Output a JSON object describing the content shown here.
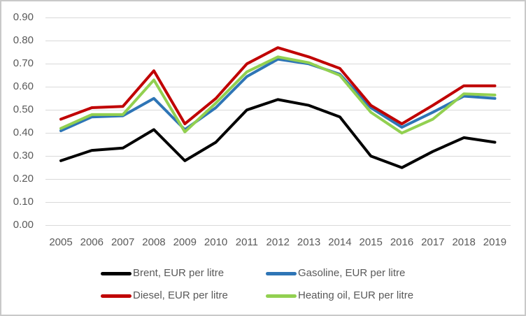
{
  "chart_data": {
    "type": "line",
    "title": "",
    "xlabel": "",
    "ylabel": "",
    "grid": true,
    "legend_position": "bottom",
    "ylim": [
      0,
      0.9
    ],
    "ytick_step": 0.1,
    "ytick_labels": [
      "0.00",
      "0.10",
      "0.20",
      "0.30",
      "0.40",
      "0.50",
      "0.60",
      "0.70",
      "0.80",
      "0.90"
    ],
    "categories": [
      "2005",
      "2006",
      "2007",
      "2008",
      "2009",
      "2010",
      "2011",
      "2012",
      "2013",
      "2014",
      "2015",
      "2016",
      "2017",
      "2018",
      "2019"
    ],
    "series": [
      {
        "name": "Brent, EUR per litre",
        "color": "#000000",
        "values": [
          0.28,
          0.325,
          0.335,
          0.415,
          0.28,
          0.36,
          0.5,
          0.545,
          0.52,
          0.47,
          0.3,
          0.25,
          0.32,
          0.38,
          0.36
        ]
      },
      {
        "name": "Gasoline, EUR per litre",
        "color": "#2E75B6",
        "values": [
          0.41,
          0.47,
          0.475,
          0.55,
          0.415,
          0.51,
          0.645,
          0.72,
          0.7,
          0.655,
          0.51,
          0.425,
          0.49,
          0.56,
          0.55
        ]
      },
      {
        "name": "Diesel, EUR per litre",
        "color": "#C00000",
        "values": [
          0.46,
          0.51,
          0.515,
          0.67,
          0.44,
          0.55,
          0.7,
          0.77,
          0.73,
          0.68,
          0.52,
          0.44,
          0.52,
          0.605,
          0.605
        ]
      },
      {
        "name": "Heating oil, EUR per litre",
        "color": "#92D050",
        "values": [
          0.42,
          0.48,
          0.48,
          0.63,
          0.405,
          0.53,
          0.665,
          0.73,
          0.705,
          0.65,
          0.49,
          0.4,
          0.46,
          0.57,
          0.565
        ]
      }
    ]
  },
  "colors": {
    "background": "#FFFFFF",
    "border": "#C9C9C9",
    "gridline": "#D9D9D9",
    "axis_text": "#595959"
  }
}
